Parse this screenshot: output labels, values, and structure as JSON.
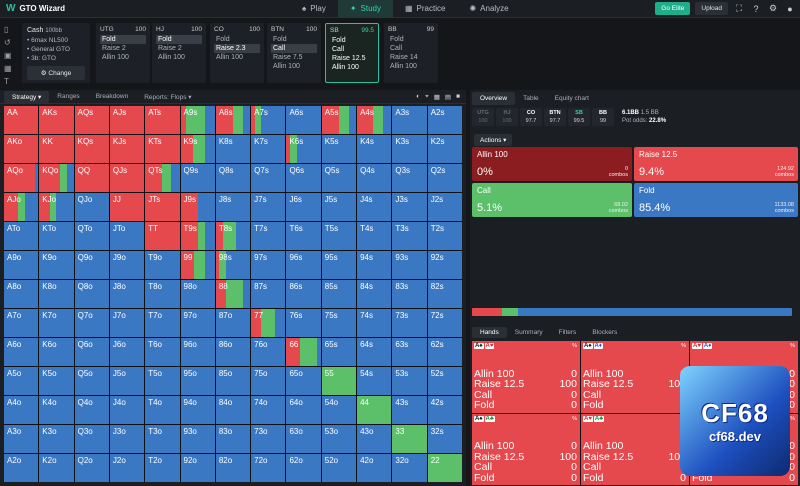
{
  "app": {
    "title": "GTO Wizard"
  },
  "nav": [
    {
      "label": "Play",
      "icon": "spade-icon",
      "active": false
    },
    {
      "label": "Study",
      "icon": "graduation-cap-icon",
      "active": true
    },
    {
      "label": "Practice",
      "icon": "gamepad-icon",
      "active": false
    },
    {
      "label": "Analyze",
      "icon": "lightbulb-icon",
      "active": false
    }
  ],
  "topright": {
    "elite_label": "Go Elite",
    "upload_label": "Upload"
  },
  "game": {
    "title": "Cash",
    "bb": "100bb",
    "lines": [
      "• 6max NL500",
      "• General GTO",
      "• 3b: GTO"
    ],
    "change_label": "Change"
  },
  "positions": [
    {
      "name": "UTG",
      "stack": "100",
      "actions": [
        {
          "label": "Fold",
          "chosen": true
        },
        {
          "label": "Raise 2",
          "chosen": false
        },
        {
          "label": "Allin 100",
          "chosen": false
        }
      ]
    },
    {
      "name": "HJ",
      "stack": "100",
      "actions": [
        {
          "label": "Fold",
          "chosen": true
        },
        {
          "label": "Raise 2",
          "chosen": false
        },
        {
          "label": "Allin 100",
          "chosen": false
        }
      ]
    },
    {
      "name": "CO",
      "stack": "100",
      "actions": [
        {
          "label": "Fold",
          "chosen": false
        },
        {
          "label": "Raise 2.3",
          "chosen": true
        },
        {
          "label": "Allin 100",
          "chosen": false
        }
      ]
    },
    {
      "name": "BTN",
      "stack": "100",
      "actions": [
        {
          "label": "Fold",
          "chosen": false
        },
        {
          "label": "Call",
          "chosen": true
        },
        {
          "label": "Raise 7.5",
          "chosen": false
        },
        {
          "label": "Allin 100",
          "chosen": false
        }
      ]
    },
    {
      "name": "SB",
      "stack": "99.5",
      "selected": true,
      "actions": [
        {
          "label": "Fold",
          "chosen": false
        },
        {
          "label": "Call",
          "chosen": false
        },
        {
          "label": "Raise 12.5",
          "chosen": false
        },
        {
          "label": "Allin 100",
          "chosen": false
        }
      ]
    },
    {
      "name": "BB",
      "stack": "99",
      "actions": [
        {
          "label": "Fold",
          "chosen": false
        },
        {
          "label": "Call",
          "chosen": false
        },
        {
          "label": "Raise 14",
          "chosen": false
        },
        {
          "label": "Allin 100",
          "chosen": false
        }
      ]
    }
  ],
  "left_tabs": [
    {
      "label": "Strategy ▾",
      "active": true
    },
    {
      "label": "Ranges",
      "active": false
    },
    {
      "label": "Breakdown",
      "active": false
    },
    {
      "label": "Reports: Flops ▾",
      "active": false
    }
  ],
  "colors": {
    "raise": "#e5484d",
    "call": "#5cbf6a",
    "fold": "#3b78c4",
    "allin": "#8b1c20"
  },
  "ranks": [
    "A",
    "K",
    "Q",
    "J",
    "T",
    "9",
    "8",
    "7",
    "6",
    "5",
    "4",
    "3",
    "2"
  ],
  "grid_mix": {
    "note_keys": "row-col 0-indexed; values are [raise, call, fold] fractions; omitted cells use default by type",
    "cells": {
      "0-5": [
        0.15,
        0.55,
        0.3
      ],
      "0-6": [
        0.5,
        0.3,
        0.2
      ],
      "0-7": [
        0.1,
        0.2,
        0.7
      ],
      "0-9": [
        0.5,
        0.3,
        0.2
      ],
      "0-10": [
        0.45,
        0.3,
        0.25
      ],
      "1-5": [
        0.35,
        0.35,
        0.3
      ],
      "1-8": [
        0.1,
        0.2,
        0.7
      ],
      "2-1": [
        0.6,
        0.2,
        0.2
      ],
      "2-4": [
        0.5,
        0.25,
        0.25
      ],
      "3-0": [
        0.4,
        0.2,
        0.4
      ],
      "3-1": [
        0.3,
        0.2,
        0.5
      ],
      "3-5": [
        0.5,
        0.0,
        0.5
      ],
      "4-5": [
        0.5,
        0.2,
        0.3
      ],
      "4-6": [
        0.2,
        0.4,
        0.4
      ],
      "5-5": [
        0.4,
        0.3,
        0.3
      ],
      "5-6": [
        0.1,
        0.2,
        0.7
      ],
      "6-6": [
        0.3,
        0.5,
        0.2
      ],
      "7-7": [
        0.3,
        0.4,
        0.3
      ],
      "8-8": [
        0.4,
        0.5,
        0.1
      ],
      "9-9": [
        0.0,
        1.0,
        0.0
      ],
      "10-10": [
        0.0,
        1.0,
        0.0
      ],
      "11-11": [
        0.0,
        1.0,
        0.0
      ],
      "12-12": [
        0.0,
        1.0,
        0.0
      ]
    }
  },
  "right_tabs": [
    {
      "label": "Overview",
      "active": true
    },
    {
      "label": "Table",
      "active": false
    },
    {
      "label": "Equity chart",
      "active": false
    }
  ],
  "minipos": [
    {
      "name": "UTG",
      "stack": "100",
      "dim": true
    },
    {
      "name": "HJ",
      "stack": "100",
      "dim": true
    },
    {
      "name": "CO",
      "stack": "97.7",
      "dim": false
    },
    {
      "name": "BTN",
      "stack": "97.7",
      "dim": false
    },
    {
      "name": "SB",
      "stack": "99.5",
      "dim": false,
      "sb": true
    },
    {
      "name": "BB",
      "stack": "99",
      "dim": false
    }
  ],
  "pot": {
    "amount": "6.1BB",
    "extra": "1.5 BB",
    "odds_label": "Pot odds:",
    "odds": "22.8%"
  },
  "actions_label": "Actions ▾",
  "action_boxes": [
    {
      "label": "Allin 100",
      "pct": "0%",
      "combos_value": "0",
      "combos_label": "combos",
      "color": "#8b1c20"
    },
    {
      "label": "Raise 12.5",
      "pct": "9.4%",
      "combos_value": "124.92",
      "combos_label": "combos",
      "color": "#e5484d"
    },
    {
      "label": "Call",
      "pct": "5.1%",
      "combos_value": "68.02",
      "combos_label": "combos",
      "color": "#5cbf6a"
    },
    {
      "label": "Fold",
      "pct": "85.4%",
      "combos_value": "1133.08",
      "combos_label": "combos",
      "color": "#3b78c4"
    }
  ],
  "freq": [
    {
      "name": "raise",
      "value": 0.094,
      "color": "#e5484d"
    },
    {
      "name": "call",
      "value": 0.051,
      "color": "#5cbf6a"
    },
    {
      "name": "fold",
      "value": 0.855,
      "color": "#3b78c4"
    }
  ],
  "hand_tabs": [
    {
      "label": "Hands",
      "active": true
    },
    {
      "label": "Summary",
      "active": false
    },
    {
      "label": "Filters",
      "active": false
    },
    {
      "label": "Blockers",
      "active": false
    }
  ],
  "hands": [
    {
      "cards": [
        {
          "t": "A♠",
          "c": "black"
        },
        {
          "t": "A♥",
          "c": "red"
        }
      ],
      "pct": "%",
      "rows": [
        {
          "a": "Allin 100",
          "v": "0"
        },
        {
          "a": "Raise 12.5",
          "v": "100"
        },
        {
          "a": "Call",
          "v": "0"
        },
        {
          "a": "Fold",
          "v": "0"
        }
      ]
    },
    {
      "cards": [
        {
          "t": "A♠",
          "c": "black"
        },
        {
          "t": "A♦",
          "c": "blue"
        }
      ],
      "pct": "%",
      "rows": [
        {
          "a": "Allin 100",
          "v": "0"
        },
        {
          "a": "Raise 12.5",
          "v": "100"
        },
        {
          "a": "Call",
          "v": "0"
        },
        {
          "a": "Fold",
          "v": "0"
        }
      ]
    },
    {
      "cards": [
        {
          "t": "A♥",
          "c": "red"
        },
        {
          "t": "A♦",
          "c": "blue"
        }
      ],
      "pct": "%",
      "rows": [
        {
          "a": "Allin 100",
          "v": "0"
        },
        {
          "a": "Raise 12.5",
          "v": "100"
        },
        {
          "a": "Call",
          "v": "0"
        },
        {
          "a": "Fold",
          "v": "0"
        }
      ]
    },
    {
      "cards": [
        {
          "t": "A♠",
          "c": "black"
        },
        {
          "t": "A♣",
          "c": "green"
        }
      ],
      "pct": "%",
      "rows": [
        {
          "a": "Allin 100",
          "v": "0"
        },
        {
          "a": "Raise 12.5",
          "v": "100"
        },
        {
          "a": "Call",
          "v": "0"
        },
        {
          "a": "Fold",
          "v": "0"
        }
      ]
    },
    {
      "cards": [
        {
          "t": "A♥",
          "c": "red"
        },
        {
          "t": "A♣",
          "c": "green"
        }
      ],
      "pct": "%",
      "rows": [
        {
          "a": "Allin 100",
          "v": "0"
        },
        {
          "a": "Raise 12.5",
          "v": "100"
        },
        {
          "a": "Call",
          "v": "0"
        },
        {
          "a": "Fold",
          "v": "0"
        }
      ]
    },
    {
      "cards": [
        {
          "t": "A♦",
          "c": "blue"
        },
        {
          "t": "A♣",
          "c": "green"
        }
      ],
      "pct": "%",
      "rows": [
        {
          "a": "Allin 100",
          "v": "0"
        },
        {
          "a": "Raise 12.5",
          "v": "100"
        },
        {
          "a": "Call",
          "v": "0"
        },
        {
          "a": "Fold",
          "v": "0"
        }
      ]
    }
  ],
  "watermark": {
    "logo": "CF68",
    "url": "cf68.dev"
  }
}
